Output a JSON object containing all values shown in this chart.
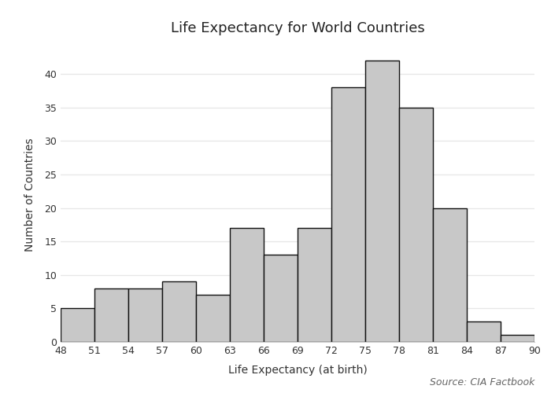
{
  "title": "Life Expectancy for World Countries",
  "xlabel": "Life Expectancy (at birth)",
  "ylabel": "Number of Countries",
  "bin_edges": [
    48,
    51,
    54,
    57,
    60,
    63,
    66,
    69,
    72,
    75,
    78,
    81,
    84,
    87,
    90
  ],
  "counts": [
    5,
    8,
    8,
    9,
    7,
    17,
    13,
    17,
    38,
    42,
    35,
    20,
    3,
    1
  ],
  "bar_color": "#c8c8c8",
  "bar_edgecolor": "#111111",
  "yticks": [
    0,
    5,
    10,
    15,
    20,
    25,
    30,
    35,
    40
  ],
  "xticks": [
    48,
    51,
    54,
    57,
    60,
    63,
    66,
    69,
    72,
    75,
    78,
    81,
    84,
    87,
    90
  ],
  "ylim": [
    0,
    44
  ],
  "background_color": "#ffffff",
  "grid_color": "#e8e8e8",
  "source_text": "Source: CIA Factbook",
  "title_fontsize": 13,
  "axis_label_fontsize": 10,
  "tick_fontsize": 9,
  "source_fontsize": 9
}
